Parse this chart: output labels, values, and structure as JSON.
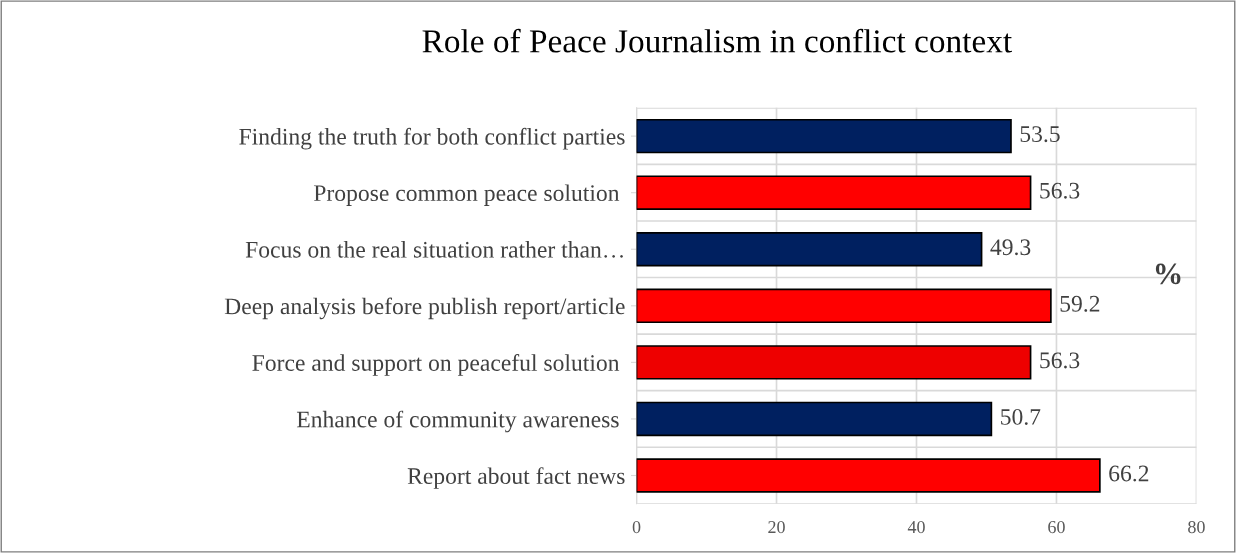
{
  "chart_data": {
    "type": "bar",
    "orientation": "horizontal",
    "title": "Role of Peace Journalism in conflict context",
    "categories": [
      "Finding the truth for both conflict parties",
      "Propose common peace solution ",
      "Focus on the real situation rather than…",
      "Deep analysis before publish report/article",
      "Force and support on peaceful solution ",
      "Enhance of community awareness ",
      "Report about fact news"
    ],
    "values": [
      53.5,
      56.3,
      49.3,
      59.2,
      56.3,
      50.7,
      66.2
    ],
    "colors": [
      "#002060",
      "#ff0000",
      "#002060",
      "#ff0000",
      "#ee0000",
      "#002060",
      "#ff0000"
    ],
    "data_labels": true,
    "xlim": [
      0,
      80
    ],
    "xticks": [
      0,
      20,
      40,
      60,
      80
    ],
    "grid": true,
    "annotations": [
      "%"
    ]
  }
}
